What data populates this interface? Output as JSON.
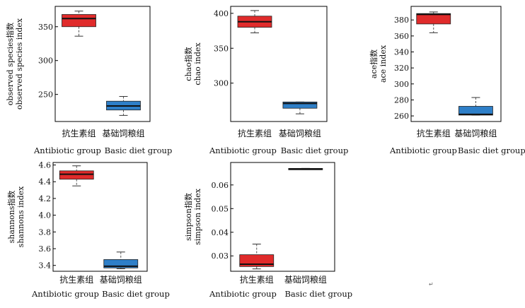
{
  "chart_data": [
    {
      "type": "box",
      "ylabel_line1": "observed species指数",
      "ylabel_line2": "observed species index",
      "yticks": [
        250,
        300,
        350
      ],
      "ylim": [
        210,
        380
      ],
      "categories": [
        "抗生素组",
        "基础饲粮组"
      ],
      "categories_en": [
        "Antibiotic group",
        "Basic diet  group"
      ],
      "boxes": [
        {
          "min": 336,
          "q1": 350,
          "median": 362,
          "q3": 368,
          "max": 373,
          "color": "#e02b2b"
        },
        {
          "min": 219,
          "q1": 227,
          "median": 233,
          "q3": 240,
          "max": 247,
          "color": "#2e7fc8"
        }
      ]
    },
    {
      "type": "box",
      "ylabel_line1": "chao指数",
      "ylabel_line2": "chao index",
      "yticks": [
        300,
        350,
        400
      ],
      "ylim": [
        245,
        410
      ],
      "categories": [
        "抗生素组",
        "基础饲粮组"
      ],
      "categories_en": [
        "Antibiotic group",
        "Basic diet  group"
      ],
      "boxes": [
        {
          "min": 372,
          "q1": 380,
          "median": 388,
          "q3": 396,
          "max": 404,
          "color": "#e02b2b"
        },
        {
          "min": 256,
          "q1": 264,
          "median": 271,
          "q3": 273,
          "max": 273,
          "color": "#2e7fc8"
        }
      ]
    },
    {
      "type": "box",
      "ylabel_line1": "ace指数",
      "ylabel_line2": "ace index",
      "yticks": [
        260,
        280,
        300,
        320,
        340,
        360,
        380
      ],
      "ylim": [
        253,
        397
      ],
      "categories": [
        "抗生素组",
        "基础饲粮组"
      ],
      "categories_en": [
        "Antibiotic group",
        "Basic diet  group"
      ],
      "boxes": [
        {
          "min": 364,
          "q1": 375,
          "median": 387,
          "q3": 388,
          "max": 390,
          "color": "#e02b2b"
        },
        {
          "min": 261,
          "q1": 261,
          "median": 262,
          "q3": 272,
          "max": 283,
          "color": "#2e7fc8"
        }
      ]
    },
    {
      "type": "box",
      "ylabel_line1": "shannons指数",
      "ylabel_line2": "shannons index",
      "yticks": [
        3.4,
        3.6,
        3.8,
        4.0,
        4.2,
        4.4,
        4.6
      ],
      "ylim": [
        3.33,
        4.63
      ],
      "categories": [
        "抗生素组",
        "基础饲粮组"
      ],
      "categories_en": [
        "Antibiotic group",
        "Basic diet  group"
      ],
      "boxes": [
        {
          "min": 4.35,
          "q1": 4.43,
          "median": 4.49,
          "q3": 4.53,
          "max": 4.59,
          "color": "#e02b2b"
        },
        {
          "min": 3.36,
          "q1": 3.37,
          "median": 3.39,
          "q3": 3.47,
          "max": 3.56,
          "color": "#2e7fc8"
        }
      ]
    },
    {
      "type": "box",
      "ylabel_line1": "simpson指数",
      "ylabel_line2": "simpson index",
      "yticks": [
        0.03,
        0.04,
        0.05,
        0.06
      ],
      "ylim": [
        0.0235,
        0.0695
      ],
      "categories": [
        "抗生素组",
        "基础饲粮组"
      ],
      "categories_en": [
        "Antibiotic group",
        "Basic diet  group"
      ],
      "boxes": [
        {
          "min": 0.0245,
          "q1": 0.0255,
          "median": 0.0265,
          "q3": 0.0305,
          "max": 0.035,
          "color": "#e02b2b"
        },
        {
          "min": 0.0665,
          "q1": 0.0665,
          "median": 0.0668,
          "q3": 0.067,
          "max": 0.067,
          "color": "#2e7fc8"
        }
      ]
    }
  ],
  "corner_mark": "↵"
}
